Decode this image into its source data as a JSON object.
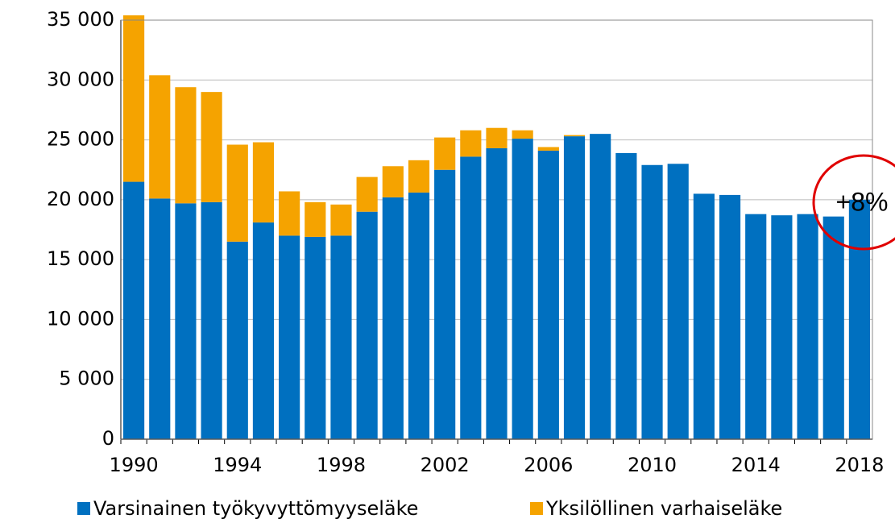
{
  "chart_data": {
    "type": "stacked_bar",
    "categories": [
      "1990",
      null,
      null,
      null,
      "1994",
      null,
      null,
      null,
      "1998",
      null,
      null,
      null,
      "2002",
      null,
      null,
      null,
      "2006",
      null,
      null,
      null,
      "2010",
      null,
      null,
      null,
      "2014",
      null,
      null,
      null,
      "2018"
    ],
    "series": [
      {
        "name": "Varsinainen työkyvyttömyyseläke",
        "color": "#0070c0",
        "values": [
          21500,
          20100,
          19700,
          19800,
          16500,
          18100,
          17000,
          16900,
          17000,
          19000,
          20200,
          20600,
          22500,
          23600,
          24300,
          25100,
          24100,
          25300,
          25500,
          23900,
          22900,
          23000,
          20500,
          20400,
          18800,
          18700,
          18800,
          18600,
          20000
        ]
      },
      {
        "name": "Yksilöllinen varhaiseläke",
        "color": "#f5a300",
        "values": [
          13900,
          10300,
          9700,
          9200,
          8100,
          6700,
          3700,
          2900,
          2600,
          2900,
          2600,
          2700,
          2700,
          2200,
          1700,
          700,
          300,
          100,
          0,
          0,
          0,
          0,
          0,
          0,
          0,
          0,
          0,
          0,
          0
        ]
      }
    ],
    "ylim": [
      0,
      35000
    ],
    "yticks": [
      0,
      {
        "value": 5000,
        "label": "5 000"
      },
      {
        "value": 10000,
        "label": "10 000"
      },
      {
        "value": 15000,
        "label": "15 000"
      },
      {
        "value": 20000,
        "label": "20 000"
      },
      {
        "value": 25000,
        "label": "25 000"
      },
      {
        "value": 30000,
        "label": "30 000"
      },
      {
        "value": 35000,
        "label": "35 000"
      }
    ],
    "grid": true,
    "legend": "bottom",
    "annotation": "+8%"
  }
}
